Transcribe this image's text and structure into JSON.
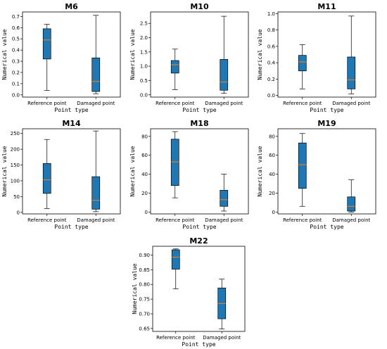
{
  "colors": {
    "box_fill": "#1f77b4",
    "median": "#ff7f0e",
    "whisker": "#000000",
    "frame": "#000000"
  },
  "chart_data": [
    {
      "type": "box",
      "title": "M6",
      "xlabel": "Point type",
      "ylabel": "Numerical value",
      "categories": [
        "Reference point",
        "Damaged point"
      ],
      "ylim": [
        -0.02,
        0.74
      ],
      "yticks": [
        "0.0",
        "0.1",
        "0.2",
        "0.3",
        "0.4",
        "0.5",
        "0.6",
        "0.7"
      ],
      "ytick_values": [
        0,
        0.1,
        0.2,
        0.3,
        0.4,
        0.5,
        0.6,
        0.7
      ],
      "boxes": [
        {
          "min": 0.04,
          "q1": 0.32,
          "median": 0.49,
          "q3": 0.59,
          "max": 0.63
        },
        {
          "min": 0.01,
          "q1": 0.03,
          "median": 0.12,
          "q3": 0.33,
          "max": 0.71
        }
      ]
    },
    {
      "type": "box",
      "title": "M10",
      "xlabel": "Point type",
      "ylabel": "Numerical value",
      "categories": [
        "Reference point",
        "Damaged point"
      ],
      "ylim": [
        -0.08,
        2.9
      ],
      "yticks": [
        "0.0",
        "0.5",
        "1.0",
        "1.5",
        "2.0",
        "2.5"
      ],
      "ytick_values": [
        0,
        0.5,
        1.0,
        1.5,
        2.0,
        2.5
      ],
      "boxes": [
        {
          "min": 0.18,
          "q1": 0.76,
          "median": 1.05,
          "q3": 1.2,
          "max": 1.6
        },
        {
          "min": 0.05,
          "q1": 0.16,
          "median": 0.45,
          "q3": 1.24,
          "max": 2.75
        }
      ]
    },
    {
      "type": "box",
      "title": "M11",
      "xlabel": "Point type",
      "ylabel": "Numerical value",
      "categories": [
        "Reference point",
        "Damaged point"
      ],
      "ylim": [
        -0.02,
        1.02
      ],
      "yticks": [
        "0.0",
        "0.2",
        "0.4",
        "0.6",
        "0.8",
        "1.0"
      ],
      "ytick_values": [
        0,
        0.2,
        0.4,
        0.6,
        0.8,
        1.0
      ],
      "boxes": [
        {
          "min": 0.08,
          "q1": 0.3,
          "median": 0.41,
          "q3": 0.49,
          "max": 0.62
        },
        {
          "min": 0.02,
          "q1": 0.08,
          "median": 0.19,
          "q3": 0.47,
          "max": 0.97
        }
      ]
    },
    {
      "type": "box",
      "title": "M14",
      "xlabel": "Point type",
      "ylabel": "Numerical value",
      "categories": [
        "Reference point",
        "Damaged point"
      ],
      "ylim": [
        -5,
        265
      ],
      "yticks": [
        "0",
        "50",
        "100",
        "150",
        "200",
        "250"
      ],
      "ytick_values": [
        0,
        50,
        100,
        150,
        200,
        250
      ],
      "boxes": [
        {
          "min": 12,
          "q1": 60,
          "median": 103,
          "q3": 155,
          "max": 231
        },
        {
          "min": 2,
          "q1": 10,
          "median": 38,
          "q3": 113,
          "max": 258
        }
      ]
    },
    {
      "type": "box",
      "title": "M18",
      "xlabel": "Point type",
      "ylabel": "Numerical value",
      "categories": [
        "Reference point",
        "Damaged point"
      ],
      "ylim": [
        -2,
        88
      ],
      "yticks": [
        "0",
        "20",
        "40",
        "60",
        "80"
      ],
      "ytick_values": [
        0,
        20,
        40,
        60,
        80
      ],
      "boxes": [
        {
          "min": 15,
          "q1": 28,
          "median": 53,
          "q3": 77,
          "max": 85
        },
        {
          "min": 1,
          "q1": 6,
          "median": 13,
          "q3": 23,
          "max": 40
        }
      ]
    },
    {
      "type": "box",
      "title": "M19",
      "xlabel": "Point type",
      "ylabel": "Numerical value",
      "categories": [
        "Reference point",
        "Damaged point"
      ],
      "ylim": [
        -2,
        88
      ],
      "yticks": [
        "0",
        "20",
        "40",
        "60",
        "80"
      ],
      "ytick_values": [
        0,
        20,
        40,
        60,
        80
      ],
      "boxes": [
        {
          "min": 6,
          "q1": 25,
          "median": 50,
          "q3": 73,
          "max": 83
        },
        {
          "min": 0,
          "q1": 1,
          "median": 6,
          "q3": 16,
          "max": 34
        }
      ]
    },
    {
      "type": "box",
      "title": "M22",
      "xlabel": "Point type",
      "ylabel": "Numerical value",
      "categories": [
        "Reference point",
        "Damaged point"
      ],
      "ylim": [
        0.64,
        0.93
      ],
      "yticks": [
        "0.65",
        "0.70",
        "0.75",
        "0.80",
        "0.85",
        "0.90"
      ],
      "ytick_values": [
        0.65,
        0.7,
        0.75,
        0.8,
        0.85,
        0.9
      ],
      "boxes": [
        {
          "min": 0.785,
          "q1": 0.852,
          "median": 0.893,
          "q3": 0.918,
          "max": 0.921
        },
        {
          "min": 0.648,
          "q1": 0.683,
          "median": 0.735,
          "q3": 0.788,
          "max": 0.818
        }
      ]
    }
  ]
}
